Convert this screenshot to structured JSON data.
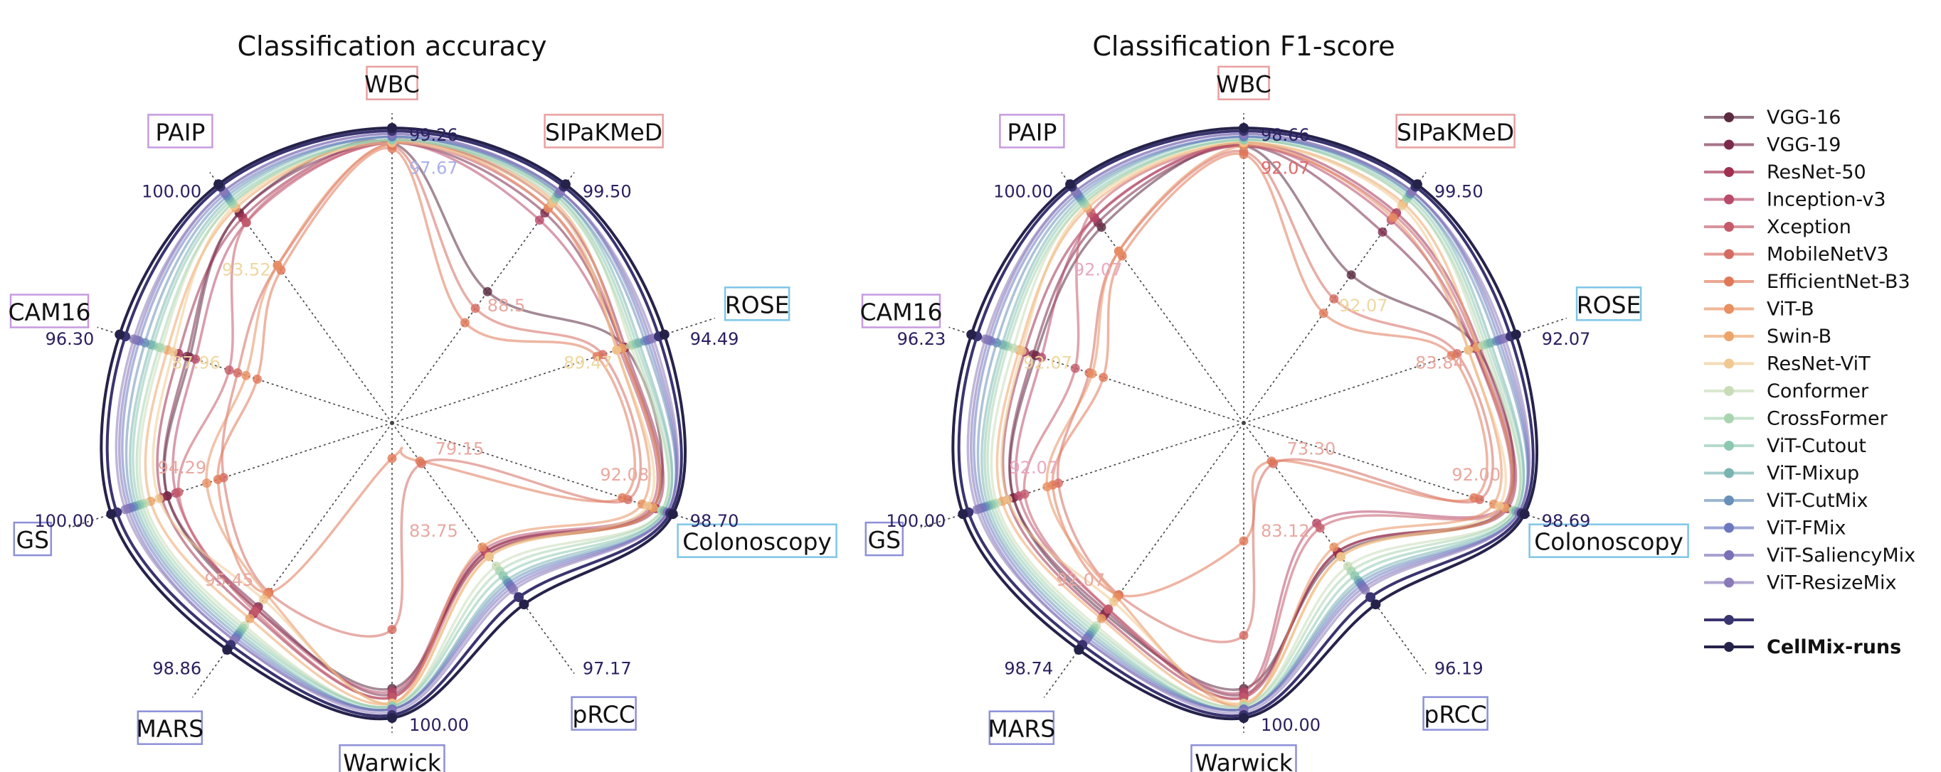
{
  "chart_data": [
    {
      "type": "radar",
      "title": "Classification accuracy",
      "axes": [
        "WBC",
        "SIPaKMeD",
        "ROSE",
        "Colonoscopy",
        "pRCC",
        "Warwick",
        "MARS",
        "GS",
        "CAM16",
        "PAIP"
      ],
      "axis_colors": [
        "#e9a0a0",
        "#e9a0a0",
        "#7fc6e6",
        "#7fc6e6",
        "#8d90d8",
        "#8d90d8",
        "#8d90d8",
        "#8d90d8",
        "#c69be0",
        "#c69be0"
      ],
      "annotations": [
        {
          "axis": "WBC",
          "text": "99.26",
          "r": 1.0,
          "color": "#2a2060"
        },
        {
          "axis": "WBC",
          "text": "97.67",
          "r": 0.83,
          "color": "#a9b0e8"
        },
        {
          "axis": "SIPaKMeD",
          "text": "99.50",
          "r": 1.0,
          "color": "#2a2060"
        },
        {
          "axis": "SIPaKMeD",
          "text": "88.5",
          "r": 0.45,
          "color": "#e8a8a0"
        },
        {
          "axis": "ROSE",
          "text": "94.49",
          "r": 1.0,
          "color": "#2a2060"
        },
        {
          "axis": "ROSE",
          "text": "89.47",
          "r": 0.55,
          "color": "#eed7a0"
        },
        {
          "axis": "Colonoscopy",
          "text": "98.70",
          "r": 1.0,
          "color": "#2a2060"
        },
        {
          "axis": "Colonoscopy",
          "text": "92.08",
          "r": 0.68,
          "color": "#e8a8a0"
        },
        {
          "axis": "pRCC",
          "text": "97.17",
          "r": 1.0,
          "color": "#2a2060"
        },
        {
          "axis": "pRCC",
          "text": "79.15",
          "r": 0.15,
          "color": "#e8a8a0"
        },
        {
          "axis": "Warwick",
          "text": "100.00",
          "r": 1.0,
          "color": "#2a2060"
        },
        {
          "axis": "Warwick",
          "text": "83.75",
          "r": 0.4,
          "color": "#e8a8a0"
        },
        {
          "axis": "MARS",
          "text": "98.86",
          "r": 1.0,
          "color": "#2a2060"
        },
        {
          "axis": "MARS",
          "text": "95.45",
          "r": 0.7,
          "color": "#e8a8a0"
        },
        {
          "axis": "GS",
          "text": "100.00",
          "r": 1.0,
          "color": "#2a2060"
        },
        {
          "axis": "GS",
          "text": "94.29",
          "r": 0.6,
          "color": "#e8a8a0"
        },
        {
          "axis": "CAM16",
          "text": "96.30",
          "r": 1.0,
          "color": "#2a2060"
        },
        {
          "axis": "CAM16",
          "text": "87.96",
          "r": 0.55,
          "color": "#eed7a0"
        },
        {
          "axis": "PAIP",
          "text": "100.00",
          "r": 1.0,
          "color": "#2a2060"
        },
        {
          "axis": "PAIP",
          "text": "93.52",
          "r": 0.6,
          "color": "#eed7a0"
        }
      ],
      "series": [
        {
          "name": "VGG-16",
          "values": [
            0.95,
            0.55,
            0.83,
            0.93,
            0.55,
            0.9,
            0.78,
            0.8,
            0.72,
            0.88
          ]
        },
        {
          "name": "VGG-19",
          "values": [
            0.95,
            0.88,
            0.82,
            0.93,
            0.54,
            0.92,
            0.77,
            0.8,
            0.73,
            0.88
          ]
        },
        {
          "name": "ResNet-50",
          "values": [
            0.96,
            0.92,
            0.83,
            0.94,
            0.54,
            0.93,
            0.8,
            0.82,
            0.76,
            0.86
          ]
        },
        {
          "name": "Inception-v3",
          "values": [
            0.95,
            0.85,
            0.81,
            0.92,
            0.53,
            0.91,
            0.78,
            0.77,
            0.7,
            0.84
          ]
        },
        {
          "name": "Xception",
          "values": [
            0.95,
            0.9,
            0.82,
            0.93,
            0.55,
            0.93,
            0.79,
            0.76,
            0.58,
            0.84
          ]
        },
        {
          "name": "MobileNetV3",
          "values": [
            0.94,
            0.48,
            0.75,
            0.84,
            0.17,
            0.7,
            0.71,
            0.6,
            0.55,
            0.66
          ]
        },
        {
          "name": "EfficientNet-B3",
          "values": [
            0.93,
            0.42,
            0.73,
            0.82,
            0.16,
            0.12,
            0.71,
            0.62,
            0.48,
            0.64
          ]
        },
        {
          "name": "ViT-B",
          "values": [
            0.95,
            0.9,
            0.8,
            0.89,
            0.52,
            0.95,
            0.72,
            0.66,
            0.52,
            0.66
          ]
        },
        {
          "name": "Swin-B",
          "values": [
            0.96,
            0.93,
            0.82,
            0.93,
            0.56,
            0.95,
            0.82,
            0.86,
            0.8,
            0.9
          ]
        },
        {
          "name": "ResNet-ViT",
          "values": [
            0.95,
            0.92,
            0.8,
            0.91,
            0.56,
            0.95,
            0.74,
            0.83,
            0.78,
            0.91
          ]
        },
        {
          "name": "Conformer",
          "values": [
            0.96,
            0.95,
            0.85,
            0.96,
            0.6,
            0.96,
            0.85,
            0.88,
            0.82,
            0.92
          ]
        },
        {
          "name": "CrossFormer",
          "values": [
            0.96,
            0.94,
            0.86,
            0.96,
            0.62,
            0.96,
            0.86,
            0.89,
            0.83,
            0.92
          ]
        },
        {
          "name": "ViT-Cutout",
          "values": [
            0.96,
            0.95,
            0.87,
            0.97,
            0.64,
            0.96,
            0.87,
            0.9,
            0.85,
            0.93
          ]
        },
        {
          "name": "ViT-Mixup",
          "values": [
            0.97,
            0.96,
            0.88,
            0.97,
            0.66,
            0.97,
            0.88,
            0.91,
            0.86,
            0.94
          ]
        },
        {
          "name": "ViT-CutMix",
          "values": [
            0.97,
            0.96,
            0.9,
            0.98,
            0.67,
            0.97,
            0.89,
            0.92,
            0.88,
            0.95
          ]
        },
        {
          "name": "ViT-FMix",
          "values": [
            0.97,
            0.97,
            0.91,
            0.98,
            0.68,
            0.97,
            0.9,
            0.93,
            0.9,
            0.96
          ]
        },
        {
          "name": "ViT-SaliencyMix",
          "values": [
            0.98,
            0.97,
            0.92,
            0.98,
            0.69,
            0.97,
            0.91,
            0.94,
            0.91,
            0.97
          ]
        },
        {
          "name": "ViT-ResizeMix",
          "values": [
            0.98,
            0.97,
            0.93,
            0.98,
            0.7,
            0.98,
            0.91,
            0.95,
            0.92,
            0.97
          ]
        },
        {
          "name": "CellMix-runs",
          "values": [
            0.99,
            0.99,
            0.95,
            0.99,
            0.73,
            0.99,
            0.93,
            0.98,
            0.95,
            0.99
          ]
        },
        {
          "name": "CellMix-runs",
          "values": [
            1.0,
            1.0,
            0.97,
            1.0,
            0.76,
            1.0,
            0.95,
            1.0,
            0.97,
            1.0
          ]
        }
      ]
    },
    {
      "type": "radar",
      "title": "Classification F1-score",
      "axes": [
        "WBC",
        "SIPaKMeD",
        "ROSE",
        "Colonoscopy",
        "pRCC",
        "Warwick",
        "MARS",
        "GS",
        "CAM16",
        "PAIP"
      ],
      "axis_colors": [
        "#e9a0a0",
        "#e9a0a0",
        "#7fc6e6",
        "#7fc6e6",
        "#8d90d8",
        "#8d90d8",
        "#8d90d8",
        "#8d90d8",
        "#c69be0",
        "#c69be0"
      ],
      "annotations": [
        {
          "axis": "WBC",
          "text": "98.66",
          "r": 1.0,
          "color": "#2a2060"
        },
        {
          "axis": "WBC",
          "text": "92.07",
          "r": 0.83,
          "color": "#e06a6a"
        },
        {
          "axis": "SIPaKMeD",
          "text": "99.50",
          "r": 1.0,
          "color": "#2a2060"
        },
        {
          "axis": "SIPaKMeD",
          "text": "92.07",
          "r": 0.45,
          "color": "#eed7a0"
        },
        {
          "axis": "ROSE",
          "text": "92.07",
          "r": 1.0,
          "color": "#2a2060"
        },
        {
          "axis": "ROSE",
          "text": "83.84",
          "r": 0.55,
          "color": "#e8a8a0"
        },
        {
          "axis": "Colonoscopy",
          "text": "98.69",
          "r": 1.0,
          "color": "#2a2060"
        },
        {
          "axis": "Colonoscopy",
          "text": "92.00",
          "r": 0.68,
          "color": "#e8a8a0"
        },
        {
          "axis": "pRCC",
          "text": "96.19",
          "r": 1.0,
          "color": "#2a2060"
        },
        {
          "axis": "pRCC",
          "text": "73.30",
          "r": 0.15,
          "color": "#e8a8a0"
        },
        {
          "axis": "Warwick",
          "text": "100.00",
          "r": 1.0,
          "color": "#2a2060"
        },
        {
          "axis": "Warwick",
          "text": "83.12",
          "r": 0.4,
          "color": "#e8a8a0"
        },
        {
          "axis": "MARS",
          "text": "98.74",
          "r": 1.0,
          "color": "#2a2060"
        },
        {
          "axis": "MARS",
          "text": "92.07",
          "r": 0.7,
          "color": "#e8a8a0"
        },
        {
          "axis": "GS",
          "text": "100.00",
          "r": 1.0,
          "color": "#2a2060"
        },
        {
          "axis": "GS",
          "text": "92.07",
          "r": 0.6,
          "color": "#e8a8c0"
        },
        {
          "axis": "CAM16",
          "text": "96.23",
          "r": 1.0,
          "color": "#2a2060"
        },
        {
          "axis": "CAM16",
          "text": "92.07",
          "r": 0.55,
          "color": "#eed7a0"
        },
        {
          "axis": "PAIP",
          "text": "100.00",
          "r": 1.0,
          "color": "#2a2060"
        },
        {
          "axis": "PAIP",
          "text": "92.07",
          "r": 0.6,
          "color": "#e8a8c0"
        }
      ],
      "series": [
        {
          "name": "VGG-16",
          "values": [
            0.94,
            0.62,
            0.83,
            0.93,
            0.55,
            0.9,
            0.8,
            0.82,
            0.74,
            0.82
          ]
        },
        {
          "name": "VGG-19",
          "values": [
            0.94,
            0.8,
            0.82,
            0.93,
            0.54,
            0.92,
            0.79,
            0.82,
            0.75,
            0.84
          ]
        },
        {
          "name": "ResNet-50",
          "values": [
            0.95,
            0.88,
            0.84,
            0.94,
            0.54,
            0.93,
            0.81,
            0.84,
            0.78,
            0.86
          ]
        },
        {
          "name": "Inception-v3",
          "values": [
            0.94,
            0.85,
            0.82,
            0.92,
            0.42,
            0.91,
            0.78,
            0.8,
            0.72,
            0.86
          ]
        },
        {
          "name": "Xception",
          "values": [
            0.94,
            0.87,
            0.83,
            0.93,
            0.44,
            0.93,
            0.78,
            0.78,
            0.6,
            0.88
          ]
        },
        {
          "name": "MobileNetV3",
          "values": [
            0.92,
            0.52,
            0.76,
            0.84,
            0.17,
            0.72,
            0.72,
            0.66,
            0.55,
            0.72
          ]
        },
        {
          "name": "EfficientNet-B3",
          "values": [
            0.91,
            0.46,
            0.74,
            0.82,
            0.16,
            0.4,
            0.72,
            0.68,
            0.5,
            0.7
          ]
        },
        {
          "name": "ViT-B",
          "values": [
            0.94,
            0.86,
            0.8,
            0.89,
            0.52,
            0.96,
            0.73,
            0.7,
            0.54,
            0.72
          ]
        },
        {
          "name": "Swin-B",
          "values": [
            0.95,
            0.92,
            0.83,
            0.93,
            0.56,
            0.95,
            0.82,
            0.86,
            0.8,
            0.9
          ]
        },
        {
          "name": "ResNet-ViT",
          "values": [
            0.95,
            0.91,
            0.8,
            0.91,
            0.56,
            0.95,
            0.75,
            0.84,
            0.79,
            0.91
          ]
        },
        {
          "name": "Conformer",
          "values": [
            0.96,
            0.94,
            0.85,
            0.96,
            0.6,
            0.96,
            0.85,
            0.88,
            0.82,
            0.92
          ]
        },
        {
          "name": "CrossFormer",
          "values": [
            0.96,
            0.94,
            0.86,
            0.96,
            0.62,
            0.96,
            0.86,
            0.89,
            0.84,
            0.92
          ]
        },
        {
          "name": "ViT-Cutout",
          "values": [
            0.96,
            0.95,
            0.87,
            0.97,
            0.64,
            0.97,
            0.87,
            0.9,
            0.85,
            0.93
          ]
        },
        {
          "name": "ViT-Mixup",
          "values": [
            0.97,
            0.96,
            0.88,
            0.97,
            0.66,
            0.97,
            0.88,
            0.91,
            0.86,
            0.94
          ]
        },
        {
          "name": "ViT-CutMix",
          "values": [
            0.97,
            0.96,
            0.9,
            0.98,
            0.67,
            0.97,
            0.89,
            0.92,
            0.88,
            0.95
          ]
        },
        {
          "name": "ViT-FMix",
          "values": [
            0.97,
            0.97,
            0.91,
            0.98,
            0.68,
            0.97,
            0.9,
            0.93,
            0.9,
            0.96
          ]
        },
        {
          "name": "ViT-SaliencyMix",
          "values": [
            0.98,
            0.97,
            0.92,
            0.98,
            0.69,
            0.97,
            0.91,
            0.94,
            0.91,
            0.97
          ]
        },
        {
          "name": "ViT-ResizeMix",
          "values": [
            0.98,
            0.97,
            0.93,
            0.98,
            0.7,
            0.98,
            0.91,
            0.95,
            0.92,
            0.97
          ]
        },
        {
          "name": "CellMix-runs",
          "values": [
            0.99,
            0.99,
            0.95,
            0.99,
            0.73,
            0.99,
            0.93,
            0.98,
            0.95,
            0.99
          ]
        },
        {
          "name": "CellMix-runs",
          "values": [
            1.0,
            1.0,
            0.97,
            1.0,
            0.76,
            1.0,
            0.95,
            1.0,
            0.97,
            1.0
          ]
        }
      ]
    }
  ],
  "legend": {
    "items": [
      {
        "name": "VGG-16",
        "color": "#5a2a40"
      },
      {
        "name": "VGG-19",
        "color": "#7a2a4a"
      },
      {
        "name": "ResNet-50",
        "color": "#a03050"
      },
      {
        "name": "Inception-v3",
        "color": "#b84a6a"
      },
      {
        "name": "Xception",
        "color": "#c45a6a"
      },
      {
        "name": "MobileNetV3",
        "color": "#d46a60"
      },
      {
        "name": "EfficientNet-B3",
        "color": "#e07858"
      },
      {
        "name": "ViT-B",
        "color": "#e89060"
      },
      {
        "name": "Swin-B",
        "color": "#eca468"
      },
      {
        "name": "ResNet-ViT",
        "color": "#f0c890"
      },
      {
        "name": "Conformer",
        "color": "#c8dcb8"
      },
      {
        "name": "CrossFormer",
        "color": "#a8d4b0"
      },
      {
        "name": "ViT-Cutout",
        "color": "#8cc8b0"
      },
      {
        "name": "ViT-Mixup",
        "color": "#78b4b0"
      },
      {
        "name": "ViT-CutMix",
        "color": "#6890b8"
      },
      {
        "name": "ViT-FMix",
        "color": "#6a78c0"
      },
      {
        "name": "ViT-SaliencyMix",
        "color": "#7a70b8"
      },
      {
        "name": "ViT-ResizeMix",
        "color": "#8a7ab8"
      },
      {
        "name": "",
        "color": "#3a3470"
      },
      {
        "name": "CellMix-runs",
        "color": "#25224a",
        "bold": true
      }
    ]
  }
}
